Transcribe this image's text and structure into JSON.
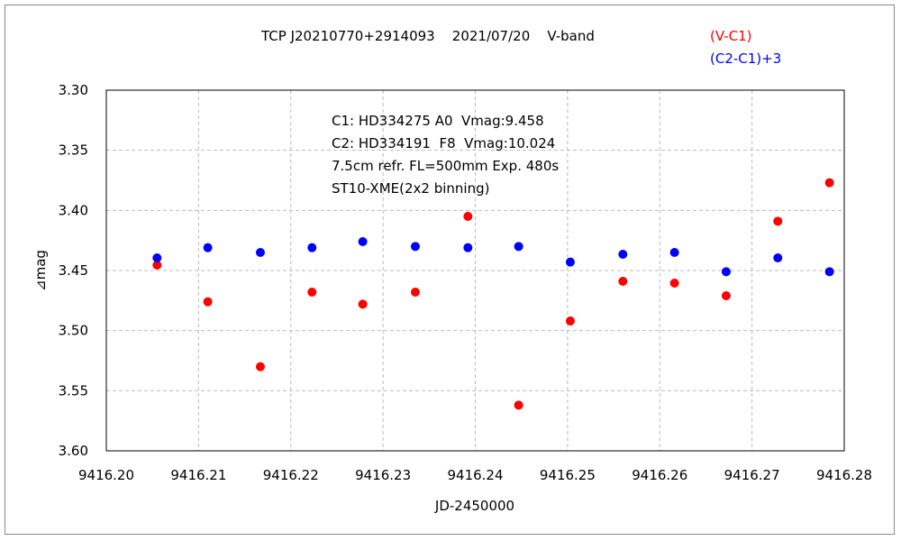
{
  "chart_data": {
    "type": "scatter",
    "title": "TCP J20210770+2914093    2021/07/20    V-band",
    "xlabel": "JD-2450000",
    "ylabel": "⊿mag",
    "xlim": [
      9416.2,
      9416.28
    ],
    "ylim": [
      3.6,
      3.3
    ],
    "y_inverted": true,
    "grid": true,
    "legend_position": "top-right",
    "xticks": [
      "9416.20",
      "9416.21",
      "9416.22",
      "9416.23",
      "9416.24",
      "9416.25",
      "9416.26",
      "9416.27",
      "9416.28"
    ],
    "yticks": [
      "3.30",
      "3.35",
      "3.40",
      "3.45",
      "3.50",
      "3.55",
      "3.60"
    ],
    "annotations": [
      "C1: HD334275 A0  Vmag:9.458",
      "C2: HD334191  F8  Vmag:10.024",
      "7.5cm refr. FL=500mm Exp. 480s",
      "ST10-XME(2x2 binning)"
    ],
    "series": [
      {
        "name": "(V-C1)",
        "color": "#ff0000",
        "x": [
          9416.2055,
          9416.211,
          9416.2167,
          9416.2223,
          9416.2278,
          9416.2335,
          9416.2392,
          9416.2447,
          9416.2503,
          9416.256,
          9416.2616,
          9416.2672,
          9416.2728,
          9416.2784
        ],
        "y": [
          3.4455,
          3.476,
          3.53,
          3.468,
          3.478,
          3.468,
          3.405,
          3.562,
          3.492,
          3.459,
          3.4605,
          3.471,
          3.409,
          3.377
        ]
      },
      {
        "name": "(C2-C1)+3",
        "color": "#0000ff",
        "x": [
          9416.2055,
          9416.211,
          9416.2167,
          9416.2223,
          9416.2278,
          9416.2335,
          9416.2392,
          9416.2447,
          9416.2503,
          9416.256,
          9416.2616,
          9416.2672,
          9416.2728,
          9416.2784
        ],
        "y": [
          3.4395,
          3.431,
          3.435,
          3.431,
          3.426,
          3.43,
          3.431,
          3.43,
          3.443,
          3.4365,
          3.435,
          3.451,
          3.4395,
          3.451
        ]
      }
    ]
  }
}
